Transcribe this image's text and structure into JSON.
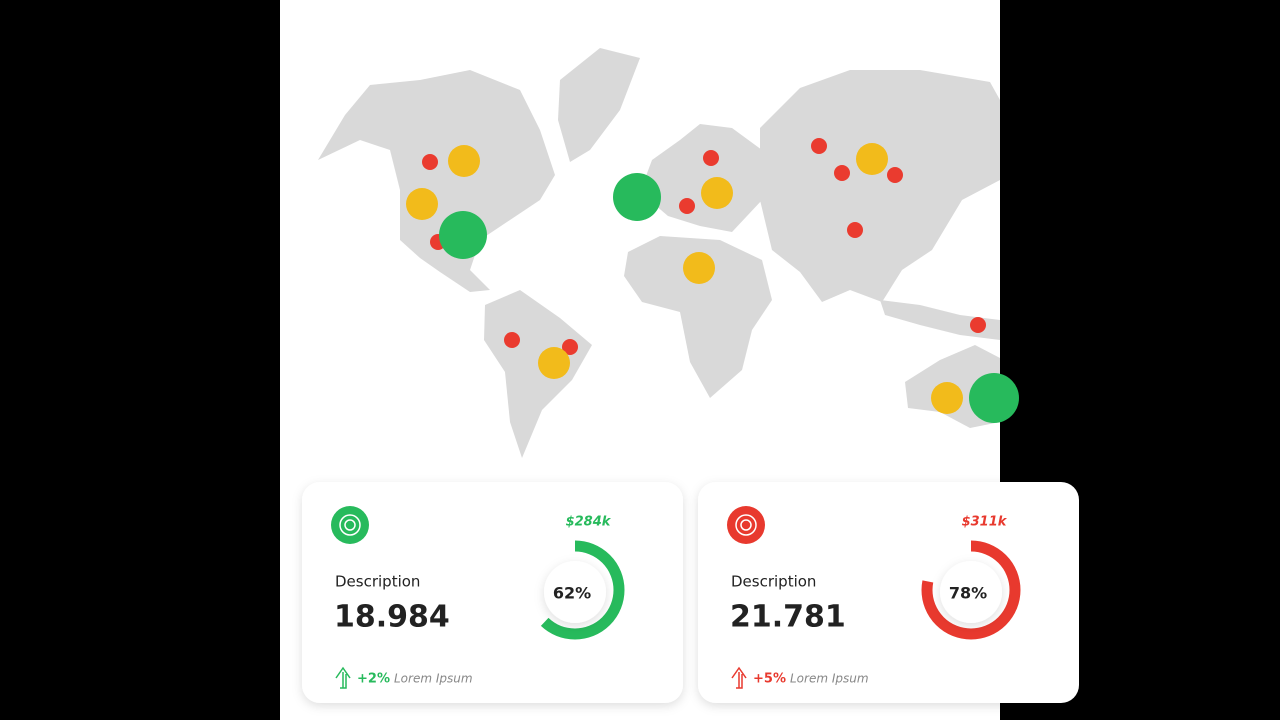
{
  "cards": [
    {
      "amount": "$284k",
      "progress": 62,
      "progress_label": "62%",
      "description": "Description",
      "value": "18.984",
      "change": "+2%",
      "note": "Lorem Ipsum",
      "color": "#27ba5c"
    },
    {
      "amount": "$311k",
      "progress": 78,
      "progress_label": "78%",
      "description": "Description",
      "value": "21.781",
      "change": "+5%",
      "note": "Lorem Ipsum",
      "color": "#e8392e"
    }
  ]
}
